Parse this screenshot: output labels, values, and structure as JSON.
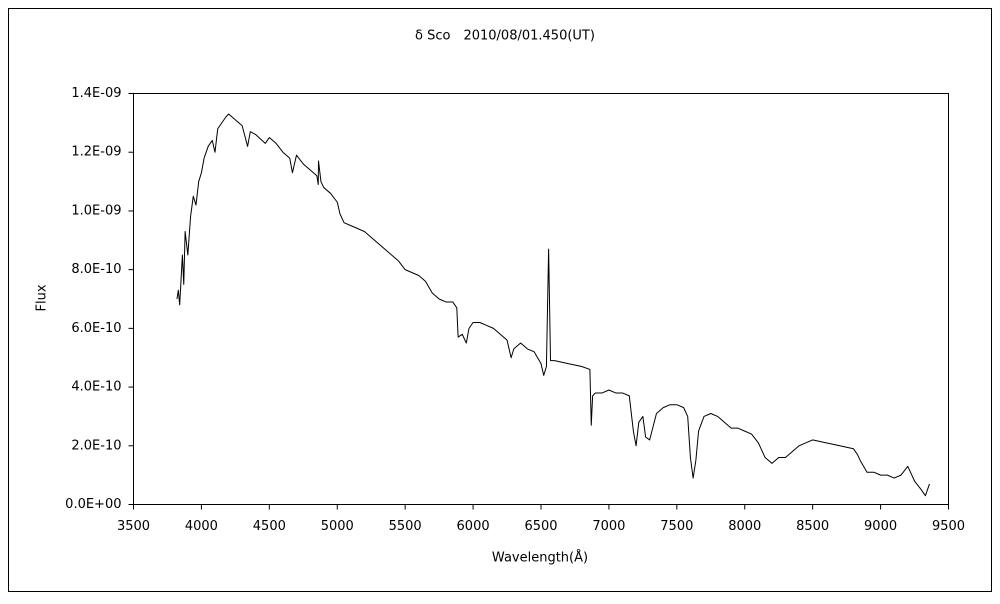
{
  "chart_data": {
    "type": "line",
    "title": "δ Sco　2010/08/01.450(UT)",
    "x_label": "Wavelength(Å)",
    "y_label": "Flux",
    "color": "#000000",
    "xlim": [
      3500,
      9500
    ],
    "xticks": [
      3500,
      4000,
      4500,
      5000,
      5500,
      6000,
      6500,
      7000,
      7500,
      8000,
      8500,
      9000,
      9500
    ],
    "ylim": [
      0,
      1.4e-09
    ],
    "yticks": [
      {
        "value": 0,
        "label": "0.0E+00"
      },
      {
        "value": 2e-10,
        "label": "2.0E-10"
      },
      {
        "value": 4e-10,
        "label": "4.0E-10"
      },
      {
        "value": 6e-10,
        "label": "6.0E-10"
      },
      {
        "value": 8e-10,
        "label": "8.0E-10"
      },
      {
        "value": 1e-09,
        "label": "1.0E-09"
      },
      {
        "value": 1.2e-09,
        "label": "1.2E-09"
      },
      {
        "value": 1.4e-09,
        "label": "1.4E-09"
      }
    ],
    "x": [
      3820,
      3830,
      3840,
      3860,
      3870,
      3880,
      3900,
      3920,
      3940,
      3960,
      3980,
      4000,
      4020,
      4050,
      4080,
      4100,
      4120,
      4150,
      4180,
      4200,
      4250,
      4300,
      4340,
      4360,
      4400,
      4470,
      4500,
      4550,
      4600,
      4650,
      4670,
      4700,
      4750,
      4800,
      4850,
      4860,
      4862,
      4880,
      4900,
      4950,
      5000,
      5020,
      5050,
      5100,
      5200,
      5300,
      5400,
      5450,
      5500,
      5600,
      5650,
      5700,
      5750,
      5800,
      5850,
      5880,
      5890,
      5920,
      5950,
      5970,
      6000,
      6050,
      6100,
      6150,
      6200,
      6250,
      6280,
      6300,
      6350,
      6400,
      6450,
      6500,
      6520,
      6540,
      6556,
      6570,
      6600,
      6700,
      6800,
      6860,
      6870,
      6880,
      6900,
      6950,
      7000,
      7050,
      7100,
      7150,
      7180,
      7200,
      7220,
      7250,
      7270,
      7300,
      7350,
      7400,
      7450,
      7500,
      7550,
      7580,
      7600,
      7620,
      7640,
      7660,
      7700,
      7750,
      7800,
      7850,
      7900,
      7950,
      8000,
      8050,
      8100,
      8150,
      8200,
      8250,
      8300,
      8350,
      8400,
      8450,
      8500,
      8600,
      8700,
      8800,
      8830,
      8850,
      8900,
      8950,
      9000,
      9050,
      9100,
      9150,
      9200,
      9250,
      9300,
      9330,
      9360
    ],
    "values": [
      7e-10,
      7.3e-10,
      6.8e-10,
      8.5e-10,
      7.5e-10,
      9.3e-10,
      8.5e-10,
      9.8e-10,
      1.05e-09,
      1.02e-09,
      1.1e-09,
      1.13e-09,
      1.18e-09,
      1.22e-09,
      1.24e-09,
      1.2e-09,
      1.28e-09,
      1.3e-09,
      1.32e-09,
      1.33e-09,
      1.31e-09,
      1.29e-09,
      1.22e-09,
      1.27e-09,
      1.26e-09,
      1.23e-09,
      1.25e-09,
      1.23e-09,
      1.2e-09,
      1.18e-09,
      1.13e-09,
      1.19e-09,
      1.16e-09,
      1.14e-09,
      1.12e-09,
      1.09e-09,
      1.17e-09,
      1.1e-09,
      1.08e-09,
      1.06e-09,
      1.03e-09,
      9.9e-10,
      9.6e-10,
      9.5e-10,
      9.3e-10,
      8.9e-10,
      8.5e-10,
      8.3e-10,
      8e-10,
      7.8e-10,
      7.6e-10,
      7.2e-10,
      7e-10,
      6.9e-10,
      6.9e-10,
      6.7e-10,
      5.7e-10,
      5.8e-10,
      5.5e-10,
      6e-10,
      6.2e-10,
      6.2e-10,
      6.1e-10,
      6e-10,
      5.8e-10,
      5.6e-10,
      5e-10,
      5.3e-10,
      5.5e-10,
      5.3e-10,
      5.2e-10,
      4.8e-10,
      4.4e-10,
      4.7e-10,
      8.7e-10,
      4.9e-10,
      4.9e-10,
      4.8e-10,
      4.7e-10,
      4.6e-10,
      2.7e-10,
      3.7e-10,
      3.8e-10,
      3.8e-10,
      3.9e-10,
      3.8e-10,
      3.8e-10,
      3.7e-10,
      2.5e-10,
      2e-10,
      2.8e-10,
      3e-10,
      2.3e-10,
      2.2e-10,
      3.1e-10,
      3.3e-10,
      3.4e-10,
      3.4e-10,
      3.3e-10,
      3e-10,
      1.6e-10,
      9e-11,
      1.5e-10,
      2.5e-10,
      3e-10,
      3.1e-10,
      3e-10,
      2.8e-10,
      2.6e-10,
      2.6e-10,
      2.5e-10,
      2.4e-10,
      2.1e-10,
      1.6e-10,
      1.4e-10,
      1.6e-10,
      1.6e-10,
      1.8e-10,
      2e-10,
      2.1e-10,
      2.2e-10,
      2.1e-10,
      2e-10,
      1.9e-10,
      1.7e-10,
      1.5e-10,
      1.1e-10,
      1.1e-10,
      1e-10,
      1e-10,
      9e-11,
      1e-10,
      1.3e-10,
      8e-11,
      5e-11,
      3e-11,
      7e-11
    ]
  }
}
